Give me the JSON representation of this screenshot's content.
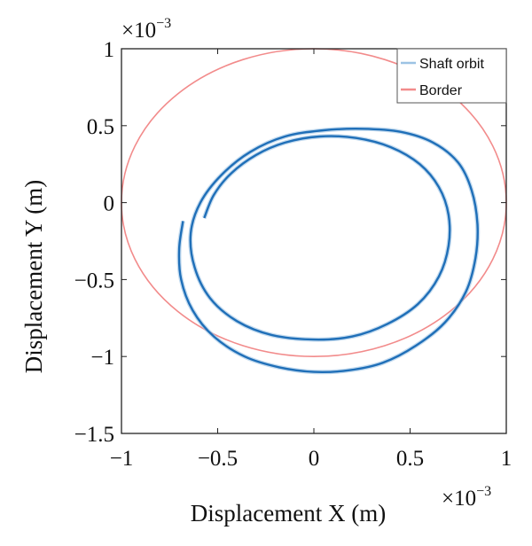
{
  "chart_data": {
    "type": "line",
    "xlabel": "Displacement X (m)",
    "ylabel": "Displacement Y (m)",
    "x_multiplier": {
      "base": "×10",
      "exp": "−3"
    },
    "y_multiplier": {
      "base": "×10",
      "exp": "−3"
    },
    "xlim": [
      -1,
      1
    ],
    "ylim": [
      -1.5,
      1
    ],
    "x_ticks": [
      {
        "value": -1,
        "label": "−1"
      },
      {
        "value": -0.5,
        "label": "−0.5"
      },
      {
        "value": 0,
        "label": "0"
      },
      {
        "value": 0.5,
        "label": "0.5"
      },
      {
        "value": 1,
        "label": "1"
      }
    ],
    "y_ticks": [
      {
        "value": 1,
        "label": "1"
      },
      {
        "value": 0.5,
        "label": "0.5"
      },
      {
        "value": 0,
        "label": "0"
      },
      {
        "value": -0.5,
        "label": "−0.5"
      },
      {
        "value": -1,
        "label": "−1"
      },
      {
        "value": -1.5,
        "label": "−1.5"
      }
    ],
    "grid": false,
    "legend_position": "top-right",
    "series": [
      {
        "name": "Shaft orbit",
        "color": "#1f6fb8",
        "light_color": "#9cc3e4",
        "points": [
          [
            -0.68,
            -0.12
          ],
          [
            -0.7,
            -0.3
          ],
          [
            -0.69,
            -0.5
          ],
          [
            -0.63,
            -0.7
          ],
          [
            -0.52,
            -0.87
          ],
          [
            -0.36,
            -1.0
          ],
          [
            -0.18,
            -1.07
          ],
          [
            0.0,
            -1.1
          ],
          [
            0.18,
            -1.09
          ],
          [
            0.36,
            -1.04
          ],
          [
            0.53,
            -0.93
          ],
          [
            0.68,
            -0.78
          ],
          [
            0.79,
            -0.58
          ],
          [
            0.84,
            -0.36
          ],
          [
            0.85,
            -0.14
          ],
          [
            0.82,
            0.08
          ],
          [
            0.75,
            0.26
          ],
          [
            0.62,
            0.39
          ],
          [
            0.45,
            0.46
          ],
          [
            0.25,
            0.48
          ],
          [
            0.05,
            0.47
          ],
          [
            -0.15,
            0.43
          ],
          [
            -0.33,
            0.33
          ],
          [
            -0.48,
            0.18
          ],
          [
            -0.59,
            0.0
          ],
          [
            -0.64,
            -0.2
          ],
          [
            -0.62,
            -0.42
          ],
          [
            -0.54,
            -0.62
          ],
          [
            -0.4,
            -0.77
          ],
          [
            -0.22,
            -0.86
          ],
          [
            0.0,
            -0.89
          ],
          [
            0.2,
            -0.87
          ],
          [
            0.38,
            -0.79
          ],
          [
            0.54,
            -0.66
          ],
          [
            0.65,
            -0.48
          ],
          [
            0.7,
            -0.28
          ],
          [
            0.7,
            -0.08
          ],
          [
            0.65,
            0.1
          ],
          [
            0.55,
            0.25
          ],
          [
            0.4,
            0.36
          ],
          [
            0.22,
            0.42
          ],
          [
            0.03,
            0.43
          ],
          [
            -0.15,
            0.39
          ],
          [
            -0.3,
            0.31
          ],
          [
            -0.43,
            0.19
          ],
          [
            -0.52,
            0.05
          ],
          [
            -0.57,
            -0.1
          ]
        ]
      },
      {
        "name": "Border",
        "color": "#f28b8b",
        "shape": "circle",
        "center": [
          0,
          0
        ],
        "radius": 1
      }
    ]
  }
}
